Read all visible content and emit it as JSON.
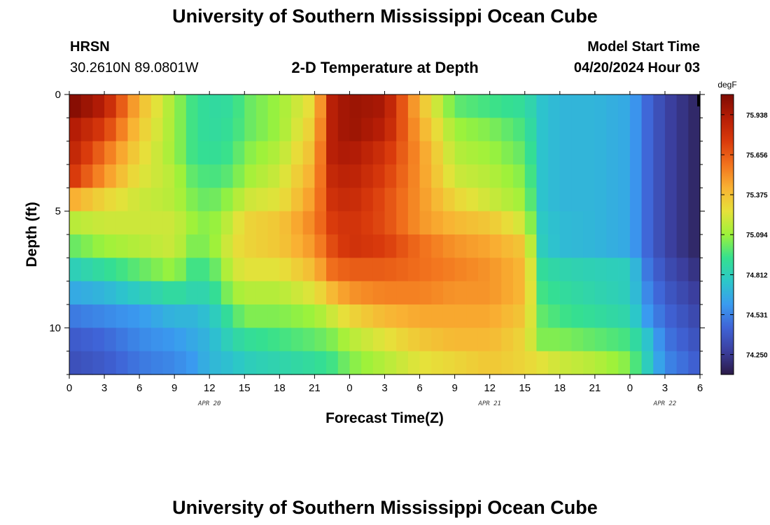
{
  "page": {
    "title_top": "University of Southern Mississippi Ocean Cube",
    "title_bottom": "University of Southern Mississippi Ocean Cube",
    "station_name": "HRSN",
    "station_coords": "30.2610N  89.0801W",
    "model_start_label": "Model Start Time",
    "model_start_value": "04/20/2024 Hour 03"
  },
  "colors": {
    "cmap": [
      "#2b1a47",
      "#3b3f9e",
      "#3f63d6",
      "#3a9bf0",
      "#2cc7c9",
      "#35e08f",
      "#9df23a",
      "#e6e13a",
      "#f9b233",
      "#f2721d",
      "#d93a0c",
      "#b51d06",
      "#7e0b02"
    ]
  },
  "chart_data": {
    "type": "heatmap",
    "title": "2-D Temperature at Depth",
    "xlabel": "Forecast Time(Z)",
    "ylabel": "Depth (ft)",
    "x_tick_labels": [
      "0",
      "3",
      "6",
      "9",
      "12",
      "15",
      "18",
      "21",
      "0",
      "3",
      "6",
      "9",
      "12",
      "15",
      "18",
      "21",
      "0",
      "3",
      "6"
    ],
    "x_range_hours": [
      0,
      54
    ],
    "date_labels": [
      {
        "text": "APR 20",
        "hour": 12
      },
      {
        "text": "APR 21",
        "hour": 36
      },
      {
        "text": "APR 22",
        "hour": 51
      }
    ],
    "y_tick_labels": [
      "0",
      "5",
      "10"
    ],
    "y_tick_values": [
      0,
      5,
      10
    ],
    "y_range_ft": [
      0,
      12
    ],
    "y_reversed": true,
    "colorbar": {
      "unit": "degF",
      "range": [
        74.11,
        76.08
      ],
      "labels": [
        "75.938",
        "75.656",
        "75.375",
        "75.094",
        "74.812",
        "74.531",
        "74.250"
      ]
    },
    "depth_levels_ft": [
      0.5,
      1.5,
      2.5,
      3.5,
      4.5,
      5.5,
      6.5,
      7.5,
      8.5,
      9.5,
      10.5,
      11.5
    ],
    "value_keyframes_hours": [
      0,
      3,
      6,
      9,
      10.5,
      12,
      14,
      15,
      18,
      21,
      22.5,
      24,
      27,
      30,
      33,
      36,
      39,
      40.5,
      42,
      45,
      48,
      49.5,
      51,
      54
    ],
    "values_degF": [
      [
        76.08,
        75.9,
        75.4,
        75.1,
        74.95,
        74.88,
        74.9,
        75.0,
        75.1,
        75.3,
        75.9,
        76.0,
        75.95,
        75.4,
        75.0,
        74.95,
        74.9,
        74.75,
        74.7,
        74.7,
        74.65,
        74.45,
        74.3,
        74.15
      ],
      [
        75.95,
        75.75,
        75.35,
        75.1,
        74.95,
        74.88,
        74.92,
        75.0,
        75.1,
        75.35,
        75.9,
        76.0,
        75.9,
        75.45,
        75.1,
        75.05,
        74.95,
        74.75,
        74.7,
        74.7,
        74.65,
        74.45,
        74.3,
        74.15
      ],
      [
        75.9,
        75.6,
        75.3,
        75.1,
        74.95,
        74.9,
        74.95,
        75.05,
        75.15,
        75.4,
        75.9,
        75.95,
        75.8,
        75.5,
        75.15,
        75.1,
        75.0,
        74.75,
        74.7,
        74.7,
        74.65,
        74.45,
        74.3,
        74.15
      ],
      [
        75.8,
        75.5,
        75.25,
        75.15,
        75.0,
        74.95,
        75.0,
        75.1,
        75.2,
        75.45,
        75.85,
        75.9,
        75.75,
        75.5,
        75.2,
        75.15,
        75.05,
        74.75,
        74.7,
        74.7,
        74.65,
        74.45,
        74.3,
        74.15
      ],
      [
        75.45,
        75.3,
        75.2,
        75.15,
        75.05,
        75.0,
        75.1,
        75.2,
        75.25,
        75.5,
        75.8,
        75.85,
        75.7,
        75.5,
        75.3,
        75.2,
        75.1,
        74.75,
        74.7,
        74.7,
        74.65,
        74.45,
        74.3,
        74.15
      ],
      [
        75.15,
        75.2,
        75.2,
        75.2,
        75.1,
        75.05,
        75.2,
        75.3,
        75.35,
        75.55,
        75.75,
        75.8,
        75.7,
        75.5,
        75.4,
        75.35,
        75.2,
        74.78,
        74.72,
        74.7,
        74.65,
        74.45,
        74.3,
        74.15
      ],
      [
        75.0,
        75.1,
        75.15,
        75.2,
        75.05,
        75.05,
        75.25,
        75.3,
        75.35,
        75.5,
        75.7,
        75.8,
        75.75,
        75.6,
        75.5,
        75.45,
        75.35,
        74.8,
        74.72,
        74.7,
        74.65,
        74.45,
        74.3,
        74.15
      ],
      [
        74.8,
        74.9,
        75.0,
        75.1,
        74.95,
        74.95,
        75.2,
        75.25,
        75.25,
        75.4,
        75.6,
        75.65,
        75.65,
        75.6,
        75.55,
        75.5,
        75.4,
        74.9,
        74.85,
        74.82,
        74.8,
        74.5,
        74.35,
        74.2
      ],
      [
        74.65,
        74.7,
        74.8,
        74.9,
        74.85,
        74.85,
        75.1,
        75.15,
        75.15,
        75.25,
        75.4,
        75.5,
        75.55,
        75.55,
        75.5,
        75.5,
        75.4,
        74.95,
        74.9,
        74.85,
        74.8,
        74.55,
        74.4,
        74.25
      ],
      [
        74.5,
        74.55,
        74.6,
        74.7,
        74.7,
        74.75,
        74.95,
        75.05,
        75.05,
        75.1,
        75.2,
        75.3,
        75.4,
        75.45,
        75.45,
        75.45,
        75.35,
        75.0,
        74.95,
        74.9,
        74.85,
        74.6,
        74.45,
        74.3
      ],
      [
        74.4,
        74.45,
        74.55,
        74.6,
        74.65,
        74.7,
        74.85,
        74.9,
        74.95,
        75.0,
        75.05,
        75.15,
        75.25,
        75.35,
        75.4,
        75.4,
        75.3,
        75.05,
        75.05,
        75.0,
        74.95,
        74.75,
        74.5,
        74.35
      ],
      [
        74.35,
        74.4,
        74.5,
        74.55,
        74.6,
        74.7,
        74.75,
        74.8,
        74.85,
        74.9,
        74.95,
        75.05,
        75.15,
        75.25,
        75.3,
        75.35,
        75.3,
        75.25,
        75.2,
        75.15,
        75.05,
        74.8,
        74.55,
        74.4
      ]
    ]
  }
}
